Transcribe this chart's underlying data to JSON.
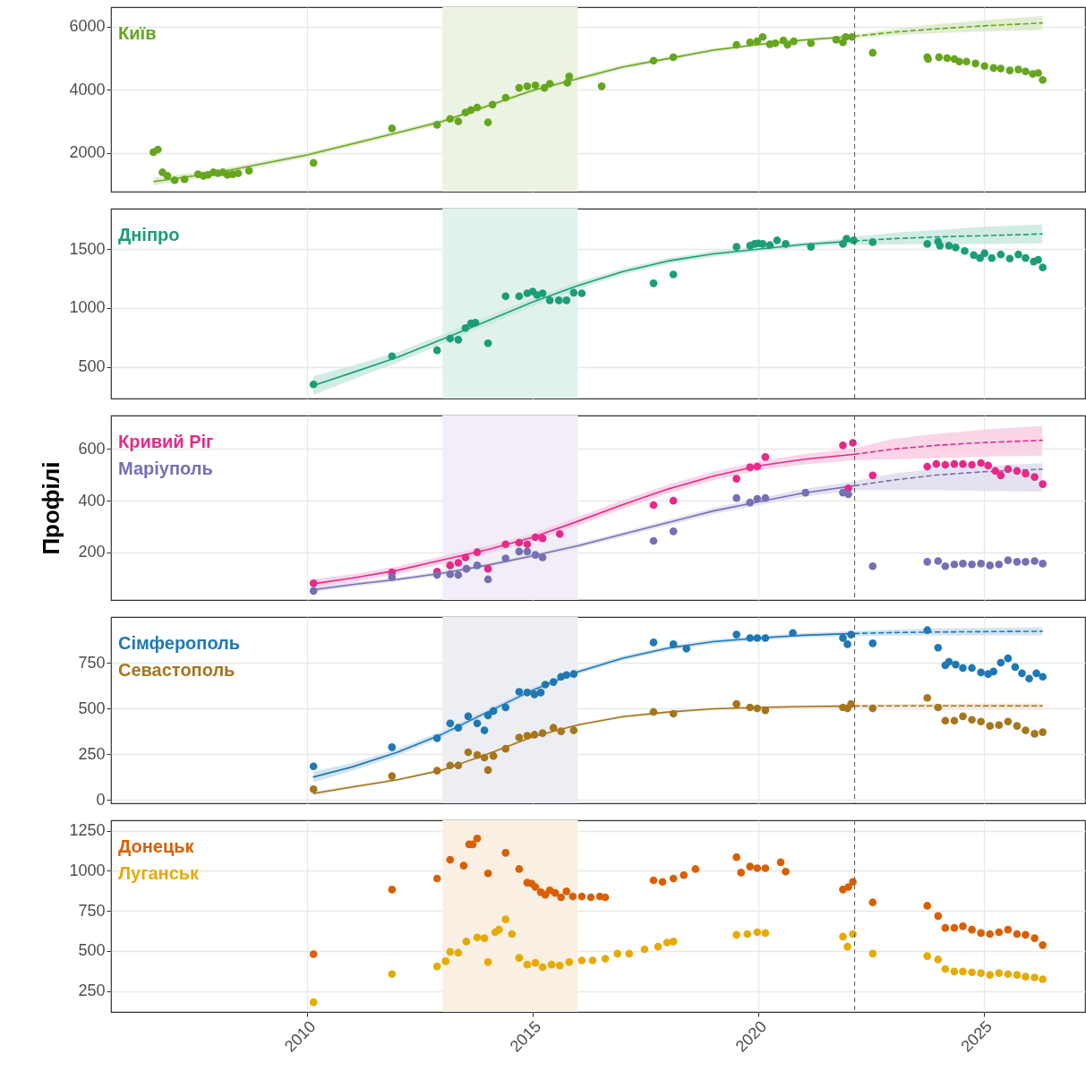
{
  "chart_data": [
    {
      "type": "scatter",
      "xlim": [
        2005.65,
        2027.25
      ],
      "xticks": [
        2010,
        2015,
        2020,
        2025
      ],
      "ylim": [
        780,
        6610
      ],
      "yticks": [
        2000,
        4000,
        6000
      ],
      "grid": true,
      "tick_labels": "y",
      "bands": [
        {
          "axis": "x",
          "from": 2013,
          "to": 2016,
          "color": "#ebf4e2"
        }
      ],
      "ref_lines": [
        {
          "axis": "x",
          "value": 2022.14,
          "color": "#555555",
          "line_style": "dashed"
        }
      ],
      "series": [
        {
          "name": "Київ",
          "marker": "circle",
          "color": "#66a61e",
          "x": [
            2006.59,
            2006.69,
            2006.79,
            2006.9,
            2007.06,
            2007.28,
            2007.58,
            2007.7,
            2007.8,
            2007.92,
            2008.02,
            2008.13,
            2008.23,
            2008.35,
            2008.47,
            2008.71,
            2010.14,
            2011.88,
            2012.88,
            2013.17,
            2013.35,
            2013.51,
            2013.63,
            2013.77,
            2014.01,
            2014.11,
            2014.4,
            2014.7,
            2014.88,
            2015.06,
            2015.26,
            2015.38,
            2015.77,
            2015.81,
            2016.53,
            2017.68,
            2018.12,
            2019.52,
            2019.82,
            2019.98,
            2020.1,
            2020.26,
            2020.38,
            2020.56,
            2020.65,
            2020.79,
            2021.17,
            2021.73,
            2021.88,
            2021.94,
            2022.08,
            2022.54,
            2023.75,
            2023.77,
            2024.01,
            2024.19,
            2024.35,
            2024.46,
            2024.62,
            2024.82,
            2025.02,
            2025.22,
            2025.38,
            2025.58,
            2025.77,
            2025.93,
            2026.09,
            2026.21,
            2026.31
          ],
          "values": [
            2030,
            2110,
            1390,
            1280,
            1140,
            1170,
            1330,
            1280,
            1310,
            1390,
            1360,
            1390,
            1310,
            1330,
            1360,
            1440,
            1690,
            2780,
            2890,
            3080,
            3000,
            3280,
            3360,
            3440,
            2970,
            3530,
            3750,
            4060,
            4110,
            4140,
            4060,
            4190,
            4220,
            4420,
            4110,
            4920,
            5030,
            5420,
            5500,
            5530,
            5670,
            5440,
            5470,
            5560,
            5420,
            5530,
            5470,
            5580,
            5500,
            5670,
            5670,
            5170,
            5030,
            4970,
            5030,
            5000,
            4970,
            4890,
            4890,
            4830,
            4750,
            4690,
            4670,
            4610,
            4640,
            4580,
            4500,
            4530,
            4310
          ]
        },
        {
          "type": "line",
          "color": "#66a61e",
          "line_style": "solid",
          "x": [
            2006.6,
            2008,
            2010,
            2012,
            2013,
            2015,
            2017,
            2019,
            2020,
            2021,
            2022.14
          ],
          "values": [
            1100,
            1380,
            1940,
            2640,
            3000,
            3980,
            4720,
            5250,
            5430,
            5570,
            5690
          ],
          "lower": [
            980,
            1290,
            1860,
            2570,
            2920,
            3910,
            4650,
            5190,
            5380,
            5510,
            5630
          ],
          "upper": [
            1220,
            1470,
            2020,
            2710,
            3080,
            4050,
            4790,
            5310,
            5480,
            5630,
            5750
          ]
        },
        {
          "type": "line",
          "color": "#66a61e",
          "line_style": "dashed",
          "x": [
            2022.14,
            2023,
            2024,
            2025,
            2026.3
          ],
          "values": [
            5690,
            5820,
            5930,
            6020,
            6110
          ],
          "lower": [
            5630,
            5720,
            5790,
            5840,
            5890
          ],
          "upper": [
            5750,
            5920,
            6080,
            6200,
            6330
          ]
        }
      ]
    },
    {
      "type": "scatter",
      "xlim": [
        2005.65,
        2027.25
      ],
      "xticks": [
        2010,
        2015,
        2020,
        2025
      ],
      "ylim": [
        230,
        1845
      ],
      "yticks": [
        500,
        1000,
        1500
      ],
      "grid": true,
      "tick_labels": "y",
      "bands": [
        {
          "axis": "x",
          "from": 2013,
          "to": 2016,
          "color": "#e1f2ec"
        }
      ],
      "ref_lines": [
        {
          "axis": "x",
          "value": 2022.14,
          "color": "#555555",
          "line_style": "dashed"
        }
      ],
      "series": [
        {
          "name": "Дніпро",
          "marker": "circle",
          "color": "#1b9e77",
          "x": [
            2010.14,
            2011.88,
            2012.88,
            2013.17,
            2013.35,
            2013.51,
            2013.63,
            2013.73,
            2014.01,
            2014.4,
            2014.7,
            2014.88,
            2015.0,
            2015.1,
            2015.22,
            2015.38,
            2015.58,
            2015.75,
            2015.91,
            2016.09,
            2017.68,
            2018.12,
            2019.52,
            2019.82,
            2019.92,
            2020.0,
            2020.1,
            2020.26,
            2020.42,
            2020.61,
            2021.17,
            2021.88,
            2021.96,
            2022.12,
            2022.54,
            2023.75,
            2023.99,
            2024.03,
            2024.23,
            2024.38,
            2024.58,
            2024.78,
            2024.92,
            2025.02,
            2025.18,
            2025.38,
            2025.58,
            2025.77,
            2025.93,
            2026.11,
            2026.21,
            2026.31
          ],
          "values": [
            350,
            590,
            640,
            740,
            730,
            830,
            870,
            875,
            700,
            1100,
            1100,
            1125,
            1140,
            1110,
            1125,
            1065,
            1065,
            1065,
            1130,
            1125,
            1210,
            1285,
            1520,
            1530,
            1545,
            1550,
            1545,
            1535,
            1575,
            1545,
            1520,
            1545,
            1590,
            1575,
            1560,
            1545,
            1565,
            1530,
            1530,
            1515,
            1485,
            1450,
            1425,
            1465,
            1425,
            1455,
            1420,
            1455,
            1425,
            1395,
            1410,
            1345
          ]
        },
        {
          "type": "line",
          "color": "#1b9e77",
          "line_style": "solid",
          "x": [
            2010.14,
            2011,
            2012,
            2013,
            2014,
            2015,
            2016,
            2017,
            2018,
            2019,
            2020,
            2021,
            2022.14
          ],
          "values": [
            340,
            450,
            580,
            735,
            890,
            1050,
            1190,
            1310,
            1400,
            1460,
            1500,
            1540,
            1570
          ],
          "lower": [
            260,
            390,
            535,
            695,
            855,
            1015,
            1160,
            1285,
            1375,
            1435,
            1480,
            1520,
            1545
          ],
          "upper": [
            420,
            510,
            625,
            775,
            925,
            1085,
            1220,
            1335,
            1425,
            1485,
            1520,
            1560,
            1595
          ]
        },
        {
          "type": "line",
          "color": "#1b9e77",
          "line_style": "dashed",
          "x": [
            2022.14,
            2023,
            2024,
            2025,
            2026.3
          ],
          "values": [
            1570,
            1590,
            1605,
            1615,
            1630
          ],
          "lower": [
            1535,
            1540,
            1545,
            1545,
            1550
          ],
          "upper": [
            1605,
            1640,
            1665,
            1690,
            1710
          ]
        }
      ]
    },
    {
      "type": "scatter",
      "xlim": [
        2005.65,
        2027.25
      ],
      "xticks": [
        2010,
        2015,
        2020,
        2025
      ],
      "ylim": [
        15,
        730
      ],
      "yticks": [
        200,
        400,
        600
      ],
      "ylabel": "Профілі",
      "grid": true,
      "tick_labels": "y",
      "bands": [
        {
          "axis": "x",
          "from": 2013,
          "to": 2016,
          "color": "#f2edf6"
        }
      ],
      "ref_lines": [
        {
          "axis": "x",
          "value": 2022.14,
          "color": "#555555",
          "line_style": "dashed"
        }
      ],
      "series": [
        {
          "type": "line",
          "color": "#e7298a",
          "line_style": "solid",
          "x": [
            2010.14,
            2011,
            2012,
            2013,
            2014,
            2015,
            2016,
            2017,
            2018,
            2019,
            2020,
            2021,
            2022.14
          ],
          "values": [
            78,
            100,
            130,
            170,
            210,
            258,
            320,
            385,
            445,
            495,
            535,
            560,
            580
          ],
          "lower": [
            60,
            85,
            115,
            155,
            195,
            243,
            303,
            368,
            428,
            478,
            517,
            540,
            557
          ],
          "upper": [
            96,
            115,
            145,
            185,
            225,
            273,
            337,
            402,
            462,
            512,
            553,
            580,
            603
          ]
        },
        {
          "type": "line",
          "color": "#e7298a",
          "line_style": "dashed",
          "x": [
            2022.14,
            2023,
            2024,
            2025,
            2026.3
          ],
          "values": [
            580,
            600,
            615,
            625,
            634
          ],
          "lower": [
            557,
            560,
            565,
            570,
            575
          ],
          "upper": [
            603,
            640,
            660,
            675,
            690
          ]
        },
        {
          "type": "line",
          "color": "#7570b3",
          "line_style": "solid",
          "x": [
            2010.14,
            2011,
            2012,
            2013,
            2014,
            2015,
            2016,
            2017,
            2018,
            2019,
            2020,
            2021,
            2022.14
          ],
          "values": [
            55,
            75,
            95,
            119,
            150,
            186,
            225,
            270,
            315,
            360,
            395,
            430,
            458
          ],
          "lower": [
            45,
            66,
            87,
            111,
            142,
            178,
            216,
            260,
            304,
            348,
            382,
            415,
            440
          ],
          "upper": [
            65,
            84,
            103,
            127,
            158,
            194,
            234,
            280,
            326,
            372,
            408,
            445,
            476
          ]
        },
        {
          "type": "line",
          "color": "#7570b3",
          "line_style": "dashed",
          "x": [
            2022.14,
            2023,
            2024,
            2025,
            2026.3
          ],
          "values": [
            458,
            480,
            500,
            512,
            522
          ],
          "lower": [
            440,
            440,
            440,
            438,
            435
          ],
          "upper": [
            476,
            505,
            525,
            535,
            545
          ]
        },
        {
          "name": "Кривий Ріг",
          "marker": "circle",
          "color": "#e7298a",
          "x": [
            2010.14,
            2011.88,
            2012.88,
            2013.17,
            2013.35,
            2013.51,
            2013.77,
            2014.01,
            2014.4,
            2014.7,
            2014.88,
            2015.06,
            2015.22,
            2015.6,
            2017.68,
            2018.12,
            2019.52,
            2019.82,
            2019.98,
            2020.16,
            2021.88,
            2022.0,
            2022.1,
            2022.54,
            2023.75,
            2023.95,
            2024.15,
            2024.35,
            2024.54,
            2024.74,
            2024.94,
            2025.1,
            2025.26,
            2025.38,
            2025.54,
            2025.74,
            2025.93,
            2026.13,
            2026.31
          ],
          "values": [
            80,
            122,
            125,
            149,
            159,
            180,
            200,
            136,
            231,
            237,
            231,
            258,
            254,
            271,
            383,
            400,
            485,
            529,
            532,
            569,
            614,
            448,
            624,
            498,
            532,
            542,
            539,
            542,
            542,
            539,
            546,
            536,
            515,
            498,
            522,
            515,
            505,
            492,
            464
          ]
        },
        {
          "name": "Маріуполь",
          "marker": "circle",
          "color": "#7570b3",
          "x": [
            2010.14,
            2011.88,
            2012.88,
            2013.17,
            2013.35,
            2013.53,
            2013.77,
            2014.01,
            2014.4,
            2014.7,
            2014.88,
            2015.06,
            2015.22,
            2017.68,
            2018.12,
            2019.52,
            2019.82,
            2019.98,
            2020.16,
            2021.05,
            2021.88,
            2022.0,
            2022.54,
            2023.75,
            2023.99,
            2024.15,
            2024.35,
            2024.54,
            2024.74,
            2024.94,
            2025.14,
            2025.34,
            2025.54,
            2025.74,
            2025.93,
            2026.13,
            2026.31
          ],
          "values": [
            50,
            104,
            112,
            115,
            112,
            136,
            149,
            95,
            176,
            203,
            203,
            190,
            180,
            244,
            281,
            410,
            393,
            407,
            410,
            431,
            431,
            425,
            146,
            163,
            166,
            146,
            153,
            156,
            153,
            156,
            149,
            153,
            169,
            163,
            163,
            166,
            156
          ]
        }
      ]
    },
    {
      "type": "scatter",
      "xlim": [
        2005.65,
        2027.25
      ],
      "xticks": [
        2010,
        2015,
        2020,
        2025
      ],
      "ylim": [
        -19,
        1000
      ],
      "yticks": [
        0,
        250,
        500,
        750
      ],
      "grid": true,
      "tick_labels": "y",
      "bands": [
        {
          "axis": "x",
          "from": 2013,
          "to": 2016,
          "color": "#eceef4"
        }
      ],
      "ref_lines": [
        {
          "axis": "x",
          "value": 2022.14,
          "color": "#555555",
          "line_style": "dashed"
        }
      ],
      "series": [
        {
          "type": "line",
          "color": "#1f78b4",
          "line_style": "solid",
          "x": [
            2010.14,
            2011,
            2012,
            2013,
            2014,
            2015,
            2016,
            2017,
            2018,
            2019,
            2020,
            2021,
            2022.14
          ],
          "values": [
            125,
            180,
            260,
            360,
            480,
            600,
            700,
            775,
            830,
            865,
            885,
            900,
            910
          ],
          "lower": [
            95,
            158,
            242,
            344,
            465,
            586,
            686,
            762,
            818,
            853,
            873,
            888,
            896
          ],
          "upper": [
            155,
            202,
            278,
            376,
            495,
            614,
            714,
            788,
            842,
            877,
            897,
            912,
            924
          ]
        },
        {
          "type": "line",
          "color": "#1f78b4",
          "line_style": "dashed",
          "x": [
            2022.14,
            2023,
            2024,
            2025,
            2026.3
          ],
          "values": [
            910,
            915,
            918,
            920,
            922
          ],
          "lower": [
            896,
            898,
            899,
            900,
            900
          ],
          "upper": [
            924,
            932,
            937,
            940,
            944
          ]
        },
        {
          "type": "line",
          "color": "#a6761d",
          "line_style": "solid",
          "x": [
            2010.14,
            2011,
            2012,
            2013,
            2014,
            2015,
            2016,
            2017,
            2018,
            2019,
            2020,
            2021,
            2022.14
          ],
          "values": [
            35,
            70,
            110,
            163,
            250,
            345,
            410,
            455,
            480,
            498,
            505,
            510,
            513
          ],
          "lower": [
            25,
            62,
            103,
            156,
            243,
            338,
            403,
            448,
            473,
            491,
            498,
            503,
            505
          ],
          "upper": [
            45,
            78,
            117,
            170,
            257,
            352,
            417,
            462,
            487,
            505,
            512,
            517,
            521
          ]
        },
        {
          "type": "line",
          "color": "#a6761d",
          "line_style": "dashed",
          "x": [
            2022.14,
            2023,
            2024,
            2025,
            2026.3
          ],
          "values": [
            513,
            514,
            514,
            514,
            514
          ],
          "lower": [
            505,
            504,
            503,
            502,
            502
          ],
          "upper": [
            521,
            524,
            525,
            526,
            526
          ]
        },
        {
          "name": "Сімферополь",
          "marker": "circle",
          "color": "#1f78b4",
          "x": [
            2010.14,
            2011.88,
            2012.88,
            2013.17,
            2013.35,
            2013.57,
            2013.77,
            2013.93,
            2014.01,
            2014.13,
            2014.4,
            2014.7,
            2014.88,
            2015.04,
            2015.18,
            2015.28,
            2015.46,
            2015.63,
            2015.75,
            2015.91,
            2017.68,
            2018.12,
            2018.41,
            2019.52,
            2019.82,
            2019.98,
            2020.16,
            2020.77,
            2021.88,
            2021.98,
            2022.06,
            2022.54,
            2023.75,
            2023.99,
            2024.15,
            2024.23,
            2024.38,
            2024.54,
            2024.74,
            2024.94,
            2025.1,
            2025.22,
            2025.38,
            2025.54,
            2025.7,
            2025.85,
            2026.01,
            2026.17,
            2026.31
          ],
          "values": [
            183,
            288,
            337,
            418,
            394,
            457,
            418,
            380,
            462,
            486,
            505,
            591,
            587,
            577,
            587,
            630,
            644,
            673,
            683,
            688,
            861,
            851,
            827,
            904,
            885,
            885,
            885,
            913,
            885,
            851,
            904,
            856,
            928,
            832,
            736,
            755,
            740,
            721,
            721,
            697,
            688,
            702,
            750,
            774,
            726,
            692,
            663,
            692,
            673
          ]
        },
        {
          "name": "Севастополь",
          "marker": "circle",
          "color": "#a6761d",
          "x": [
            2010.14,
            2011.88,
            2012.88,
            2013.17,
            2013.35,
            2013.57,
            2013.77,
            2013.93,
            2014.01,
            2014.13,
            2014.4,
            2014.7,
            2014.88,
            2015.04,
            2015.22,
            2015.46,
            2015.63,
            2015.91,
            2017.68,
            2018.12,
            2019.52,
            2019.82,
            2019.98,
            2020.16,
            2021.88,
            2021.98,
            2022.06,
            2022.54,
            2023.75,
            2023.99,
            2024.15,
            2024.35,
            2024.54,
            2024.74,
            2024.94,
            2025.14,
            2025.34,
            2025.54,
            2025.74,
            2025.93,
            2026.13,
            2026.31
          ],
          "values": [
            58,
            130,
            159,
            188,
            188,
            260,
            245,
            231,
            163,
            240,
            279,
            341,
            351,
            356,
            365,
            394,
            375,
            380,
            481,
            471,
            524,
            505,
            500,
            490,
            505,
            500,
            524,
            500,
            558,
            505,
            433,
            433,
            457,
            438,
            428,
            404,
            409,
            428,
            404,
            380,
            361,
            370
          ]
        }
      ]
    },
    {
      "type": "scatter",
      "xlim": [
        2005.65,
        2027.25
      ],
      "xticks": [
        2010,
        2015,
        2020,
        2025
      ],
      "ylim": [
        120,
        1315
      ],
      "yticks": [
        250,
        500,
        750,
        1000,
        1250
      ],
      "grid": true,
      "bands": [
        {
          "axis": "x",
          "from": 2013,
          "to": 2016,
          "color": "#f9efe2"
        }
      ],
      "ref_lines": [
        {
          "axis": "x",
          "value": 2022.14,
          "color": "#555555",
          "line_style": "dashed"
        }
      ],
      "series": [
        {
          "name": "Донецьк",
          "marker": "circle",
          "color": "#d95f02",
          "x": [
            2010.14,
            2011.88,
            2012.88,
            2013.17,
            2013.47,
            2013.59,
            2013.67,
            2013.77,
            2014.01,
            2014.4,
            2014.7,
            2014.88,
            2014.98,
            2015.06,
            2015.18,
            2015.28,
            2015.38,
            2015.5,
            2015.63,
            2015.75,
            2015.89,
            2016.09,
            2016.29,
            2016.49,
            2016.61,
            2017.68,
            2017.88,
            2018.12,
            2018.35,
            2018.61,
            2019.52,
            2019.62,
            2019.82,
            2019.98,
            2020.16,
            2020.5,
            2020.61,
            2021.88,
            2022.0,
            2022.1,
            2022.54,
            2023.75,
            2023.99,
            2024.15,
            2024.35,
            2024.54,
            2024.74,
            2024.94,
            2025.14,
            2025.34,
            2025.54,
            2025.74,
            2025.93,
            2026.13,
            2026.31
          ],
          "values": [
            480,
            883,
            952,
            1069,
            1032,
            1165,
            1165,
            1202,
            984,
            1112,
            1011,
            926,
            920,
            899,
            867,
            851,
            878,
            862,
            835,
            872,
            840,
            840,
            835,
            840,
            835,
            941,
            931,
            952,
            973,
            1011,
            1085,
            989,
            1027,
            1016,
            1016,
            1053,
            995,
            883,
            899,
            931,
            803,
            782,
            718,
            644,
            644,
            654,
            633,
            612,
            606,
            617,
            633,
            606,
            601,
            580,
            537
          ]
        },
        {
          "name": "Луганськ",
          "marker": "circle",
          "color": "#e6ab02",
          "x": [
            2010.14,
            2011.88,
            2012.88,
            2013.07,
            2013.17,
            2013.35,
            2013.53,
            2013.77,
            2013.93,
            2014.01,
            2014.17,
            2014.25,
            2014.4,
            2014.54,
            2014.7,
            2014.88,
            2015.06,
            2015.22,
            2015.42,
            2015.6,
            2015.81,
            2016.09,
            2016.33,
            2016.61,
            2016.88,
            2017.14,
            2017.48,
            2017.78,
            2017.98,
            2018.12,
            2019.52,
            2019.76,
            2019.98,
            2020.16,
            2021.88,
            2021.98,
            2022.1,
            2022.54,
            2023.75,
            2023.99,
            2024.15,
            2024.35,
            2024.54,
            2024.74,
            2024.94,
            2025.14,
            2025.34,
            2025.54,
            2025.74,
            2025.93,
            2026.13,
            2026.31
          ],
          "values": [
            181,
            356,
            404,
            436,
            495,
            489,
            559,
            585,
            580,
            431,
            617,
            633,
            697,
            606,
            457,
            415,
            426,
            399,
            415,
            410,
            431,
            441,
            441,
            452,
            484,
            484,
            511,
            527,
            553,
            559,
            601,
            606,
            617,
            612,
            590,
            527,
            606,
            484,
            468,
            447,
            388,
            372,
            372,
            367,
            362,
            351,
            362,
            356,
            351,
            340,
            335,
            324
          ]
        }
      ]
    }
  ]
}
